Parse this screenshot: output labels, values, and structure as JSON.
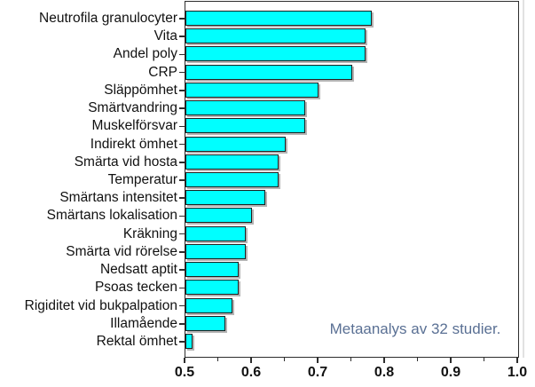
{
  "chart_data": {
    "type": "bar",
    "orientation": "horizontal",
    "title": "",
    "xlabel": "",
    "ylabel": "",
    "categories": [
      "Neutrofila granulocyter",
      "Vita",
      "Andel poly",
      "CRP",
      "Släppömhet",
      "Smärtvandring",
      "Muskelförsvar",
      "Indirekt ömhet",
      "Smärta vid hosta",
      "Temperatur",
      "Smärtans intensitet",
      "Smärtans lokalisation",
      "Kräkning",
      "Smärta vid rörelse",
      "Nedsatt aptit",
      "Psoas tecken",
      "Rigiditet vid bukpalpation",
      "Illamående",
      "Rektal ömhet"
    ],
    "values": [
      0.78,
      0.77,
      0.77,
      0.75,
      0.7,
      0.68,
      0.68,
      0.65,
      0.64,
      0.64,
      0.62,
      0.6,
      0.59,
      0.59,
      0.58,
      0.58,
      0.57,
      0.56,
      0.51
    ],
    "xlim": [
      0.5,
      1.0
    ],
    "x_major_ticks": [
      0.5,
      0.6,
      0.7,
      0.8,
      0.9,
      1.0
    ],
    "x_tick_labels": [
      "0.5",
      "0.6",
      "0.7",
      "0.8",
      "0.9",
      "1.0"
    ],
    "x_minor_ticks": [
      0.55,
      0.65,
      0.75,
      0.85,
      0.95
    ],
    "grid": false,
    "legend": null,
    "annotation": "Metaanalys av 32 studier.",
    "colors": {
      "bar_fill": "#00ffff",
      "bar_border": "#1f1f1f",
      "bar_shadow": "#b4b4b4",
      "axis_frame": "#2d2d2d",
      "tick_label": "#111111",
      "category_label": "#111111",
      "annotation_text": "#5a7094"
    }
  }
}
